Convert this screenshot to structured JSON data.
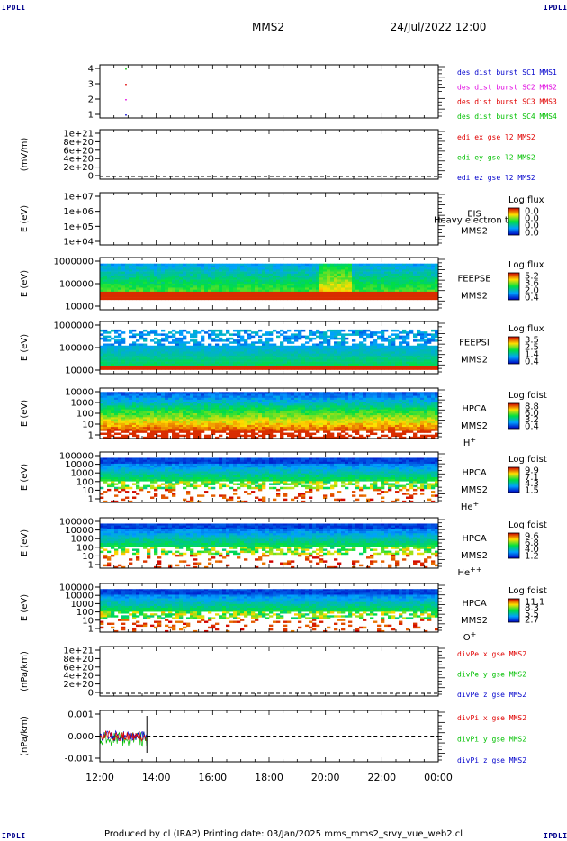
{
  "header": {
    "corner_label": "IPDLI",
    "title": "MMS2",
    "datetime": "24/Jul/2022 12:00"
  },
  "footer": {
    "text": "Produced by cl (IRAP)   Printing date: 03/Jan/2025   mms_mms2_srvy_vue_web2.cl"
  },
  "x_axis": {
    "ticks": [
      "12:00",
      "14:00",
      "16:00",
      "18:00",
      "20:00",
      "22:00",
      "00:00"
    ]
  },
  "colors": {
    "red": "#e00000",
    "magenta": "#e000e0",
    "blue": "#0000cc",
    "green": "#00c000"
  },
  "panels": [
    {
      "id": "burst",
      "yticks": [
        "4",
        "3",
        "2",
        "1"
      ],
      "legend": [
        {
          "text": "des dist burst SC1 MMS1",
          "color": "blue"
        },
        {
          "text": "des dist burst SC2 MMS2",
          "color": "magenta"
        },
        {
          "text": "des dist burst SC3 MMS3",
          "color": "red"
        },
        {
          "text": "des dist burst SC4 MMS4",
          "color": "green"
        }
      ]
    },
    {
      "id": "edi",
      "ylabel": "(mV/m)",
      "yticks": [
        "1e+21",
        "8e+20",
        "6e+20",
        "4e+20",
        "2e+20",
        "0"
      ],
      "legend": [
        {
          "text": "edi ex gse l2 MMS2",
          "color": "red"
        },
        {
          "text": "edi ey gse l2 MMS2",
          "color": "green"
        },
        {
          "text": "edi ez gse l2 MMS2",
          "color": "blue"
        }
      ]
    },
    {
      "id": "eis",
      "ylabel": "E (eV)",
      "yticks": [
        "1e+07",
        "1e+06",
        "1e+05",
        "1e+04"
      ],
      "instrument": "EIS",
      "instrument_extra": "Heavy electron to",
      "sc": "MMS2",
      "colorbar_title": "Log flux",
      "colorbar_ticks": [
        "0.0",
        "0.0",
        "0.0",
        "0.0"
      ]
    },
    {
      "id": "feepse",
      "ylabel": "E (eV)",
      "yticks": [
        "1000000",
        "100000",
        "10000"
      ],
      "instrument": "FEEPSE",
      "sc": "MMS2",
      "colorbar_title": "Log flux",
      "colorbar_ticks": [
        "5.2",
        "3.6",
        "2.0",
        "0.4"
      ]
    },
    {
      "id": "feepsi",
      "ylabel": "E (eV)",
      "yticks": [
        "1000000",
        "100000",
        "10000"
      ],
      "instrument": "FEEPSI",
      "sc": "MMS2",
      "colorbar_title": "Log flux",
      "colorbar_ticks": [
        "3.5",
        "2.5",
        "1.4",
        "0.4"
      ]
    },
    {
      "id": "hpca_h",
      "ylabel": "E (eV)",
      "yticks": [
        "10000",
        "1000",
        "100",
        "10",
        "1"
      ],
      "instrument": "HPCA",
      "sc": "MMS2",
      "species": "H",
      "species_sup": "+",
      "colorbar_title": "Log fdist",
      "colorbar_ticks": [
        "8.8",
        "6.0",
        "3.2",
        "0.4"
      ]
    },
    {
      "id": "hpca_he",
      "ylabel": "E (eV)",
      "yticks": [
        "100000",
        "10000",
        "1000",
        "100",
        "10",
        "1"
      ],
      "instrument": "HPCA",
      "sc": "MMS2",
      "species": "He",
      "species_sup": "+",
      "colorbar_title": "Log fdist",
      "colorbar_ticks": [
        "9.9",
        "7.1",
        "4.3",
        "1.5"
      ]
    },
    {
      "id": "hpca_hepp",
      "ylabel": "E (eV)",
      "yticks": [
        "100000",
        "10000",
        "1000",
        "100",
        "10",
        "1"
      ],
      "instrument": "HPCA",
      "sc": "MMS2",
      "species": "He",
      "species_sup": "++",
      "colorbar_title": "Log fdist",
      "colorbar_ticks": [
        "9.6",
        "6.8",
        "4.0",
        "1.2"
      ]
    },
    {
      "id": "hpca_o",
      "ylabel": "E (eV)",
      "yticks": [
        "100000",
        "10000",
        "1000",
        "100",
        "10",
        "1"
      ],
      "instrument": "HPCA",
      "sc": "MMS2",
      "species": "O",
      "species_sup": "+",
      "colorbar_title": "Log fdist",
      "colorbar_ticks": [
        "11.1",
        "8.3",
        "5.5",
        "2.7"
      ]
    },
    {
      "id": "divpe",
      "ylabel": "(nPa/km)",
      "yticks": [
        "1e+21",
        "8e+20",
        "6e+20",
        "4e+20",
        "2e+20",
        "0"
      ],
      "legend": [
        {
          "text": "divPe x gse MMS2",
          "color": "red"
        },
        {
          "text": "divPe y gse MMS2",
          "color": "green"
        },
        {
          "text": "divPe z gse MMS2",
          "color": "blue"
        }
      ]
    },
    {
      "id": "divpi",
      "ylabel": "(nPa/km)",
      "yticks": [
        "0.001",
        "0.000",
        "-0.001"
      ],
      "legend": [
        {
          "text": "divPi x gse MMS2",
          "color": "red"
        },
        {
          "text": "divPi y gse MMS2",
          "color": "green"
        },
        {
          "text": "divPi z gse MMS2",
          "color": "blue"
        }
      ]
    }
  ],
  "chart_data": {
    "type": "heatmap",
    "title": "MMS2",
    "xlabel": "",
    "x_range": [
      "12:00",
      "00:00"
    ],
    "burst_markers": [
      {
        "sc": 1,
        "time": "12:55"
      },
      {
        "sc": 2,
        "time": "12:55"
      },
      {
        "sc": 3,
        "time": "12:55"
      },
      {
        "sc": 4,
        "time": "12:55"
      }
    ],
    "divpi_data_end": "13:40",
    "divpi_ylim": [
      -0.0015,
      0.0015
    ]
  }
}
